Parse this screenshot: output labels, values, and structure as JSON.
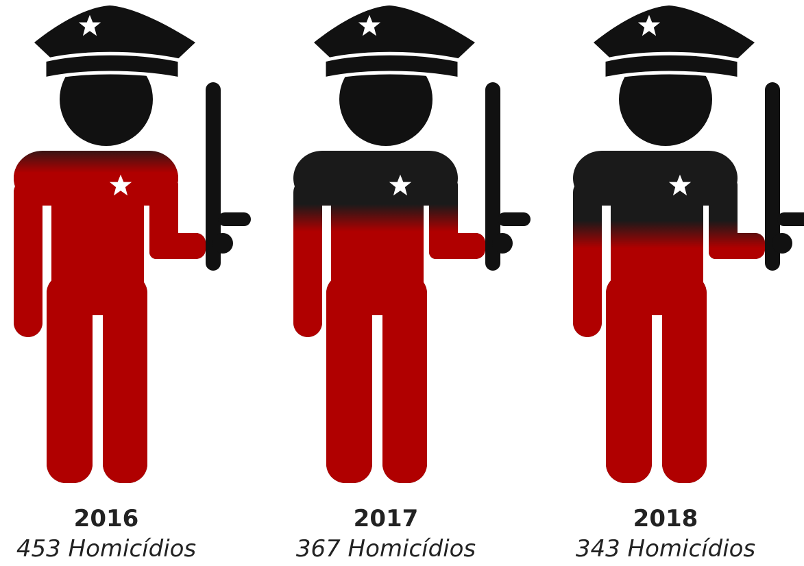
{
  "chart_data": {
    "type": "pictograph",
    "categories": [
      "2016",
      "2017",
      "2018"
    ],
    "values": [
      453,
      367,
      343
    ],
    "value_labels": [
      "453 Homicídios",
      "367 Homicídios",
      "343 Homicídios"
    ],
    "color": "#b00000"
  }
}
